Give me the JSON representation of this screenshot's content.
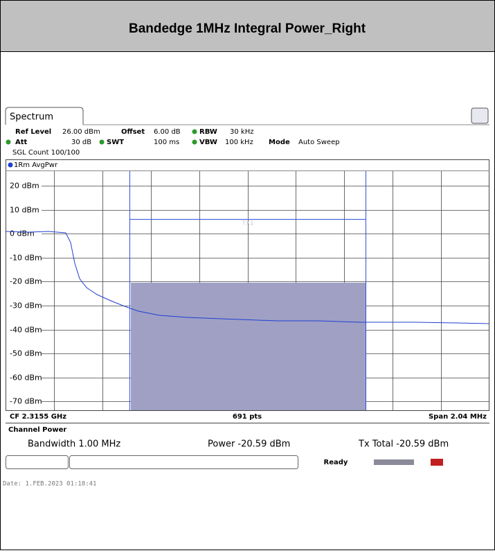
{
  "header": {
    "title": "Bandedge 1MHz Integral Power_Right"
  },
  "spectrum": {
    "tab": "Spectrum",
    "settings": {
      "ref_level_label": "Ref Level",
      "ref_level": "26.00 dBm",
      "offset_label": "Offset",
      "offset": "6.00 dB",
      "rbw_label": "RBW",
      "rbw": "30 kHz",
      "att_label": "Att",
      "att": "30 dB",
      "swt_label": "SWT",
      "swt": "100 ms",
      "vbw_label": "VBW",
      "vbw": "100 kHz",
      "mode_label": "Mode",
      "mode": "Auto Sweep",
      "sgl_count": "SGL Count 100/100"
    },
    "trace_label": "1Rm AvgPwr",
    "y_labels": [
      "20 dBm",
      "10 dBm",
      "0 dBm",
      "-10 dBm",
      "-20 dBm",
      "-30 dBm",
      "-40 dBm",
      "-50 dBm",
      "-60 dBm",
      "-70 dBm"
    ],
    "marker": "TX1",
    "footer": {
      "center_freq": "CF 2.3155 GHz",
      "points": "691 pts",
      "span": "Span 2.04 MHz"
    }
  },
  "channel_power": {
    "title": "Channel Power",
    "bandwidth": "Bandwidth  1.00 MHz",
    "power": "Power  -20.59 dBm",
    "tx_total": "Tx Total  -20.59 dBm"
  },
  "status": "Ready",
  "date": "Date: 1.FEB.2023  01:18:41"
}
